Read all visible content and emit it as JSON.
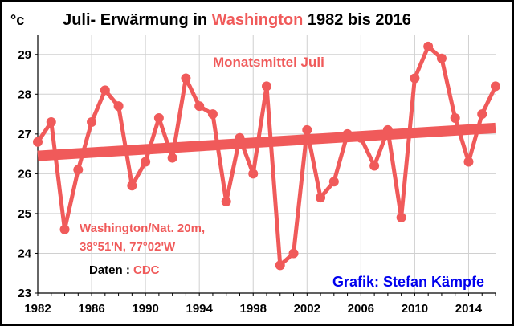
{
  "title": {
    "part1": "Juli- Erwärmung in ",
    "part2": "Washington",
    "part3": " 1982 bis 2016"
  },
  "y_unit": "°c",
  "annotations": {
    "series_label": "Monatsmittel Juli",
    "station_line1": "Washington/Nat. 20m,",
    "station_line2": "38°51'N, 77°02'W",
    "source_prefix": "Daten : ",
    "source_name": "CDC",
    "credit": "Grafik: Stefan Kämpfe"
  },
  "colors": {
    "series": "#f05a5a",
    "trend": "#f05a5a",
    "highlight": "#f05a5a",
    "credit": "#0000ee",
    "grid": "#d0d0d0"
  },
  "chart_data": {
    "type": "line",
    "title": "Juli- Erwärmung in Washington 1982 bis 2016",
    "ylabel": "°c",
    "xlim": [
      1982,
      2016
    ],
    "ylim": [
      23,
      29.5
    ],
    "grid": true,
    "x_ticks": [
      1982,
      1986,
      1990,
      1994,
      1998,
      2002,
      2006,
      2010,
      2014
    ],
    "y_ticks": [
      23,
      24,
      25,
      26,
      27,
      28,
      29
    ],
    "series": [
      {
        "name": "Monatsmittel Juli",
        "x": [
          1982,
          1983,
          1984,
          1985,
          1986,
          1987,
          1988,
          1989,
          1990,
          1991,
          1992,
          1993,
          1994,
          1995,
          1996,
          1997,
          1998,
          1999,
          2000,
          2001,
          2002,
          2003,
          2004,
          2005,
          2006,
          2007,
          2008,
          2009,
          2010,
          2011,
          2012,
          2013,
          2014,
          2015,
          2016
        ],
        "values": [
          26.8,
          27.3,
          24.6,
          26.1,
          27.3,
          28.1,
          27.7,
          25.7,
          26.3,
          27.4,
          26.4,
          28.4,
          27.7,
          27.5,
          25.3,
          26.9,
          26.0,
          28.2,
          23.7,
          24.0,
          27.1,
          25.4,
          25.8,
          27.0,
          26.9,
          26.2,
          27.1,
          24.9,
          28.4,
          29.2,
          28.9,
          27.4,
          26.3,
          27.5,
          28.2
        ]
      }
    ],
    "trend": {
      "x": [
        1982,
        2016
      ],
      "values": [
        26.45,
        27.15
      ]
    }
  }
}
